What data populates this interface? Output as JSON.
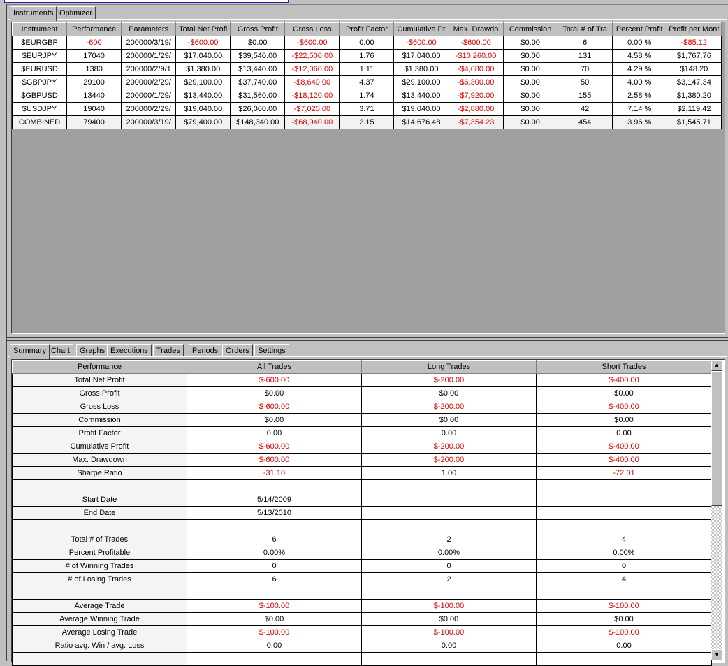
{
  "top_tabs": [
    "Instruments",
    "Optimizer"
  ],
  "instruments_table": {
    "columns": [
      "Instrument",
      "Performance",
      "Parameters",
      "Total Net Profi",
      "Gross Profit",
      "Gross Loss",
      "Profit Factor",
      "Cumulative Pr",
      "Max. Drawdo",
      "Commission",
      "Total # of Tra",
      "Percent Profit",
      "Profit per Mont"
    ],
    "rows": [
      [
        "$EURGBP",
        "-600",
        "200000/3/19/",
        "-$600.00",
        "$0.00",
        "-$600.00",
        "0.00",
        "-$600.00",
        "-$600.00",
        "$0.00",
        "6",
        "0.00 %",
        "-$85.12"
      ],
      [
        "$EURJPY",
        "17040",
        "200000/1/29/",
        "$17,040.00",
        "$39,540.00",
        "-$22,500.00",
        "1.76",
        "$17,040.00",
        "-$10,260.00",
        "$0.00",
        "131",
        "4.58 %",
        "$1,767.76"
      ],
      [
        "$EURUSD",
        "1380",
        "200000/2/9/1",
        "$1,380.00",
        "$13,440.00",
        "-$12,060.00",
        "1.11",
        "$1,380.00",
        "-$4,680.00",
        "$0.00",
        "70",
        "4.29 %",
        "$148.20"
      ],
      [
        "$GBPJPY",
        "29100",
        "200000/2/29/",
        "$29,100.00",
        "$37,740.00",
        "-$8,640.00",
        "4.37",
        "$29,100.00",
        "-$6,300.00",
        "$0.00",
        "50",
        "4.00 %",
        "$3,147.34"
      ],
      [
        "$GBPUSD",
        "13440",
        "200000/1/29/",
        "$13,440.00",
        "$31,560.00",
        "-$18,120.00",
        "1.74",
        "$13,440.00",
        "-$7,920.00",
        "$0.00",
        "155",
        "2.58 %",
        "$1,380.20"
      ],
      [
        "$USDJPY",
        "19040",
        "200000/2/29/",
        "$19,040.00",
        "$26,060.00",
        "-$7,020.00",
        "3.71",
        "$19,040.00",
        "-$2,880.00",
        "$0.00",
        "42",
        "7.14 %",
        "$2,119.42"
      ],
      [
        "COMBINED",
        "79400",
        "200000/3/19/",
        "$79,400.00",
        "$148,340.00",
        "-$68,940.00",
        "2.15",
        "$14,676.48",
        "-$7,354.23",
        "$0.00",
        "454",
        "3.96 %",
        "$1,545.71"
      ]
    ]
  },
  "bottom_tabs": [
    "Summary",
    "Chart",
    "Graphs",
    "Executions",
    "Trades",
    "Periods",
    "Orders",
    "Settings"
  ],
  "summary_table": {
    "columns": [
      "Performance",
      "All Trades",
      "Long Trades",
      "Short Trades"
    ],
    "rows": [
      [
        "Total Net Profit",
        "$-600.00",
        "$-200.00",
        "$-400.00"
      ],
      [
        "Gross Profit",
        "$0.00",
        "$0.00",
        "$0.00"
      ],
      [
        "Gross Loss",
        "$-600.00",
        "$-200.00",
        "$-400.00"
      ],
      [
        "Commission",
        "$0.00",
        "$0.00",
        "$0.00"
      ],
      [
        "Profit Factor",
        "0.00",
        "0.00",
        "0.00"
      ],
      [
        "Cumulative Profit",
        "$-600.00",
        "$-200.00",
        "$-400.00"
      ],
      [
        "Max. Drawdown",
        "$-600.00",
        "$-200.00",
        "$-400.00"
      ],
      [
        "Sharpe Ratio",
        "-31.10",
        "1.00",
        "-72.01"
      ],
      [
        "",
        "",
        "",
        ""
      ],
      [
        "Start Date",
        "5/14/2009",
        "",
        ""
      ],
      [
        "End Date",
        "5/13/2010",
        "",
        ""
      ],
      [
        "",
        "",
        "",
        ""
      ],
      [
        "Total # of Trades",
        "6",
        "2",
        "4"
      ],
      [
        "Percent Profitable",
        "0.00%",
        "0.00%",
        "0.00%"
      ],
      [
        "# of Winning Trades",
        "0",
        "0",
        "0"
      ],
      [
        "# of Losing Trades",
        "6",
        "2",
        "4"
      ],
      [
        "",
        "",
        "",
        ""
      ],
      [
        "Average Trade",
        "$-100.00",
        "$-100.00",
        "$-100.00"
      ],
      [
        "Average Winning Trade",
        "$0.00",
        "$0.00",
        "$0.00"
      ],
      [
        "Average Losing Trade",
        "$-100.00",
        "$-100.00",
        "$-100.00"
      ],
      [
        "Ratio avg. Win / avg. Loss",
        "0.00",
        "0.00",
        "0.00"
      ],
      [
        "",
        "",
        "",
        ""
      ]
    ]
  },
  "colors": {
    "negative": "#e00000",
    "grid_background": "#a0a0a0"
  },
  "scrollbar": {
    "position_fraction": 0.0
  }
}
